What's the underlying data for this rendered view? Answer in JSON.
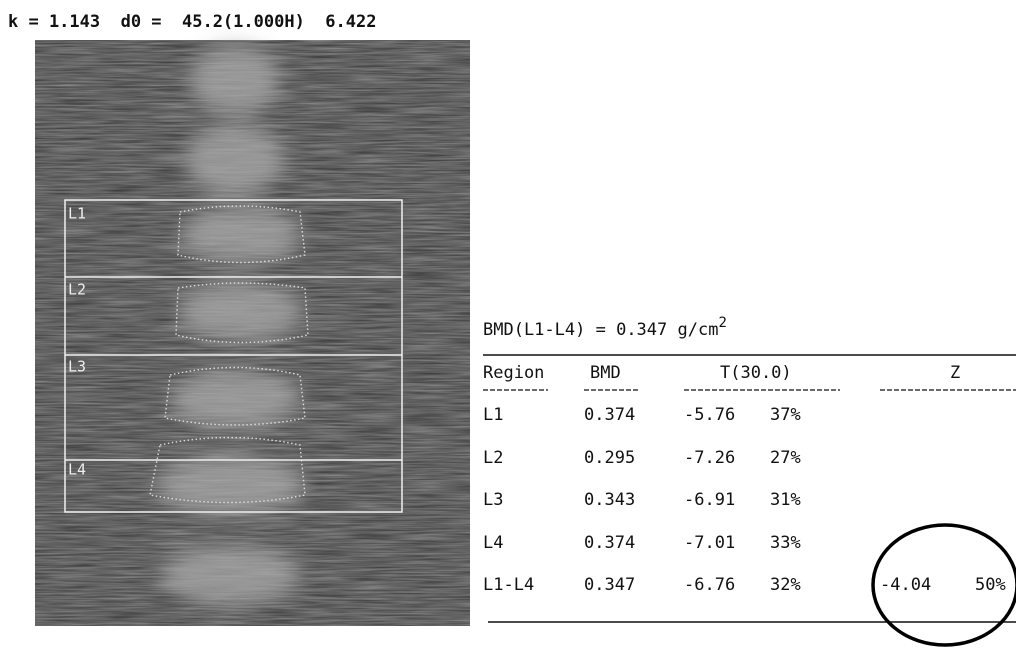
{
  "header": {
    "text": "k = 1.143  d0 =  45.2(1.000H)  6.422"
  },
  "scan": {
    "regions": [
      "L1",
      "L2",
      "L3",
      "L4"
    ]
  },
  "summary": {
    "label": "BMD(L1-L4) =",
    "value": "0.347",
    "unit": "g/cm",
    "unit_exponent": "2"
  },
  "table": {
    "columns": [
      "Region",
      "BMD",
      "T(30.0)",
      "Z"
    ],
    "rows": [
      [
        "L1",
        "0.374",
        "-5.76",
        "37%"
      ],
      [
        "L2",
        "0.295",
        "-7.26",
        "27%"
      ],
      [
        "L3",
        "0.343",
        "-6.91",
        "31%"
      ],
      [
        "L4",
        "0.374",
        "-7.01",
        "33%"
      ],
      [
        "L1-L4",
        "0.347",
        "-6.76",
        "32%",
        "-4.04",
        "50%"
      ]
    ]
  }
}
